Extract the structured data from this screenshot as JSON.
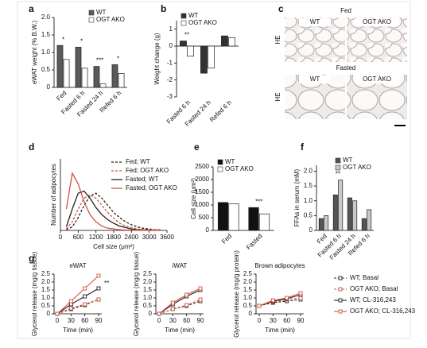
{
  "panel_labels": [
    "a",
    "b",
    "c",
    "d",
    "e",
    "f",
    "g"
  ],
  "histology": {
    "rows": [
      {
        "title": "Fed",
        "columns": [
          "WT",
          "OGT AKO"
        ],
        "stain": "HE"
      },
      {
        "title": "Fasted",
        "columns": [
          "WT",
          "OGT AKO"
        ],
        "stain": "HE"
      }
    ]
  },
  "chart_data": [
    {
      "type": "bar",
      "ylabel": "eWAT weight (% B.W.)",
      "categories": [
        "Fed",
        "Fasted 6 h",
        "Fasted 24 h",
        "Refed 6 h"
      ],
      "series": [
        {
          "name": "WT",
          "color": "#5a5a5a",
          "values": [
            1.2,
            1.15,
            0.6,
            0.65
          ]
        },
        {
          "name": "OGT AKO",
          "color": "#ffffff",
          "values": [
            0.8,
            0.55,
            0.1,
            0.4
          ]
        }
      ],
      "significance": [
        "*",
        "*",
        "***",
        "*"
      ],
      "ylim": [
        0,
        2
      ],
      "yticks": [
        0,
        0.5,
        {
          "value": 1,
          "label": "1.0"
        },
        1.5,
        {
          "value": 2,
          "label": "2.0"
        }
      ],
      "legend": "upper right"
    },
    {
      "type": "bar",
      "ylabel": "Weight change (g)",
      "categories": [
        "Fasted 6 h",
        "Fasted 24 h",
        "Refed 6 h"
      ],
      "series": [
        {
          "name": "WT",
          "color": "#333333",
          "values": [
            0.3,
            -1.6,
            0.6
          ]
        },
        {
          "name": "OGT AKO",
          "color": "#ffffff",
          "values": [
            -0.6,
            -1.3,
            0.5
          ]
        }
      ],
      "significance": [
        "**",
        null,
        null
      ],
      "ylim": [
        -3,
        1.5
      ],
      "yticks": [
        -3,
        -2,
        -1,
        0,
        1
      ],
      "legend": "upper left"
    },
    {
      "type": "line",
      "ylabel": "Number of adipocytes",
      "xlabel": "Cell size (μm²)",
      "x": [
        200,
        400,
        600,
        800,
        1000,
        1200,
        1400,
        1600,
        1800,
        2000,
        2200,
        2400,
        2600,
        2800,
        3000,
        3200,
        3400
      ],
      "xlim": [
        0,
        3600
      ],
      "xticks": [
        0,
        600,
        1200,
        1800,
        2400,
        3000,
        3600
      ],
      "ylim": [
        0,
        100
      ],
      "series": [
        {
          "name": "Fed; WT",
          "color": "#222222",
          "dashed": true,
          "values": [
            1,
            5,
            18,
            35,
            48,
            52,
            45,
            35,
            25,
            18,
            12,
            8,
            5,
            3,
            2,
            1,
            0.5
          ]
        },
        {
          "name": "Fed; OGT AKO",
          "color": "#d0533f",
          "dashed": true,
          "values": [
            2,
            12,
            30,
            45,
            50,
            45,
            35,
            25,
            17,
            10,
            6,
            4,
            2,
            1,
            1,
            0.5,
            0.5
          ]
        },
        {
          "name": "Fasted; WT",
          "color": "#222222",
          "dashed": false,
          "values": [
            5,
            30,
            52,
            55,
            45,
            32,
            22,
            15,
            10,
            6,
            4,
            2,
            1,
            1,
            0.5,
            0.5,
            0.5
          ]
        },
        {
          "name": "Fasted; OGT AKO",
          "color": "#d0533f",
          "dashed": false,
          "values": [
            30,
            80,
            65,
            40,
            22,
            12,
            6,
            3,
            2,
            1,
            0.5,
            0.5,
            0.5,
            0.5,
            0.5,
            0.5,
            0.5
          ]
        }
      ],
      "legend": "upper right"
    },
    {
      "type": "bar",
      "ylabel": "Cell size (μm²)",
      "categories": [
        "Fed",
        "Fasted"
      ],
      "series": [
        {
          "name": "WT",
          "color": "#111111",
          "values": [
            1100,
            900
          ]
        },
        {
          "name": "OGT AKO",
          "color": "#ffffff",
          "values": [
            1050,
            650
          ]
        }
      ],
      "significance": [
        null,
        "***"
      ],
      "ylim": [
        0,
        2500
      ],
      "yticks": [
        0,
        500,
        1000,
        1500,
        2000,
        2500
      ],
      "legend": "upper left"
    },
    {
      "type": "bar",
      "ylabel": "FFAs in serum (mM)",
      "categories": [
        "Fed",
        "Fasted 6 h",
        "Fasted 24 h",
        "Refed 6 h"
      ],
      "series": [
        {
          "name": "WT",
          "color": "#555555",
          "values": [
            0.4,
            1.2,
            1.1,
            0.4
          ]
        },
        {
          "name": "OGT AKO",
          "color": "#c8c8c8",
          "values": [
            0.5,
            1.7,
            1.0,
            0.7
          ]
        }
      ],
      "significance": [
        null,
        "**",
        null,
        null
      ],
      "ylim": [
        0,
        2.2
      ],
      "yticks": [
        0,
        0.5,
        {
          "value": 1,
          "label": "1.0"
        },
        1.5,
        {
          "value": 2,
          "label": "2.0"
        }
      ],
      "legend": "upper right"
    },
    {
      "type": "multiline",
      "xlabel": "Time (min)",
      "x": [
        0,
        30,
        60,
        90
      ],
      "xlim": [
        0,
        90
      ],
      "xticks": [
        0,
        30,
        60,
        90
      ],
      "series": [
        {
          "name": "WT; Basal",
          "color": "#222222",
          "dashed": true
        },
        {
          "name": "OGT AKO; Basal",
          "color": "#d0533f",
          "dashed": true
        },
        {
          "name": "WT; CL-316,243",
          "color": "#222222",
          "dashed": false
        },
        {
          "name": "OGT AKO; CL-316,243",
          "color": "#d0533f",
          "dashed": false
        }
      ],
      "panels": [
        {
          "title": "eWAT",
          "ylabel": "Glycerol release (mg/g tissue)",
          "ylim": [
            0,
            2.5
          ],
          "yticks": [
            0,
            0.5,
            {
              "value": 1,
              "label": "1.0"
            },
            1.5,
            {
              "value": 2,
              "label": "2.0"
            },
            2.5
          ],
          "values": [
            [
              0,
              0.3,
              0.55,
              0.9
            ],
            [
              0,
              0.35,
              0.6,
              0.9
            ],
            [
              0,
              0.6,
              1.1,
              1.6
            ],
            [
              0,
              0.8,
              1.6,
              2.4
            ]
          ],
          "annotation": "**"
        },
        {
          "title": "iWAT",
          "ylabel": "Glycerol release (mg/g tissue)",
          "ylim": [
            0,
            2.5
          ],
          "yticks": [
            0,
            0.5,
            {
              "value": 1,
              "label": "1.0"
            },
            1.5,
            {
              "value": 2,
              "label": "2.0"
            },
            2.5
          ],
          "values": [
            [
              0,
              0.3,
              0.5,
              0.8
            ],
            [
              0,
              0.3,
              0.55,
              0.9
            ],
            [
              0,
              0.6,
              1.1,
              1.5
            ],
            [
              0,
              0.7,
              1.2,
              1.6
            ]
          ]
        },
        {
          "title": "Brown adipocytes",
          "ylabel": "Glycerol release (mg/g protein)",
          "ylim": [
            0,
            2.5
          ],
          "yticks": [
            0,
            0.5,
            {
              "value": 1,
              "label": "1.0"
            },
            1.5,
            {
              "value": 2,
              "label": "2.0"
            },
            2.5
          ],
          "values": [
            [
              0.5,
              0.7,
              0.8,
              0.9
            ],
            [
              0.5,
              0.75,
              0.9,
              1.0
            ],
            [
              0.5,
              0.8,
              0.95,
              1.2
            ],
            [
              0.5,
              0.85,
              1.0,
              1.3
            ]
          ]
        }
      ]
    }
  ]
}
